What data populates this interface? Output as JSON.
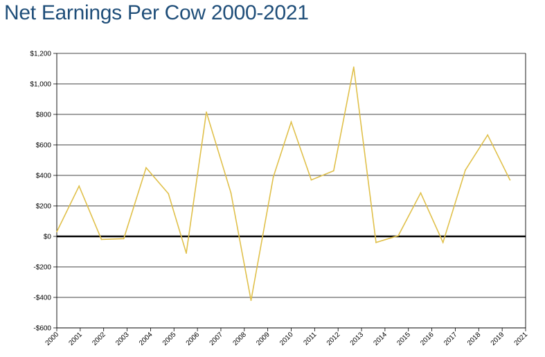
{
  "chart_data": {
    "type": "line",
    "title": "Net Earnings Per Cow 2000-2021",
    "xlabel": "",
    "ylabel": "",
    "ylim": [
      -600,
      1200
    ],
    "yticks": [
      1200,
      1000,
      800,
      600,
      400,
      200,
      0,
      -200,
      -400,
      -600
    ],
    "ytick_labels": [
      "$1,200",
      "$1,000",
      "$800",
      "$600",
      "$400",
      "$200",
      "$0",
      "-$200",
      "-$400",
      "-$600"
    ],
    "categories": [
      "2000",
      "2001",
      "2002",
      "2003",
      "2004",
      "2005",
      "2006",
      "2007",
      "2008",
      "2009",
      "2010",
      "2011",
      "2012",
      "2013",
      "2014",
      "2015",
      "2016",
      "2017",
      "2018",
      "2019",
      "2021"
    ],
    "x": [
      2000,
      2001,
      2002,
      2003,
      2004,
      2005,
      2005.8,
      2006.7,
      2007.8,
      2008.7,
      2009.7,
      2010.5,
      2011.4,
      2012.4,
      2013.3,
      2014.3,
      2015.3,
      2016.3,
      2017.3,
      2018.3,
      2019.3,
      2020.3
    ],
    "series": [
      {
        "values": [
          30,
          330,
          -20,
          -15,
          450,
          280,
          -110,
          815,
          285,
          -420,
          390,
          750,
          370,
          430,
          1110,
          -40,
          5,
          285,
          -40,
          435,
          665,
          370
        ]
      }
    ],
    "grid": true,
    "legend": "none",
    "colors": {
      "line": "#e0c04a",
      "grid": "#000000",
      "zero_line": "#000000",
      "title": "#1f4e79"
    }
  }
}
